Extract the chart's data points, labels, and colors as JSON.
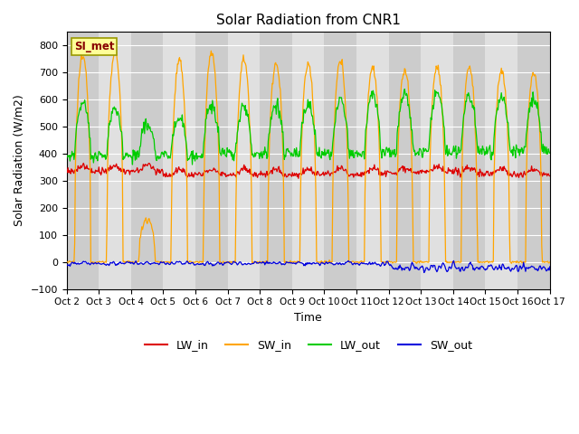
{
  "title": "Solar Radiation from CNR1",
  "xlabel": "Time",
  "ylabel": "Solar Radiation (W/m2)",
  "ylim": [
    -100,
    850
  ],
  "yticks": [
    -100,
    0,
    100,
    200,
    300,
    400,
    500,
    600,
    700,
    800
  ],
  "background_color": "#ffffff",
  "plot_bg_color": "#e0e0e0",
  "stripe_even_color": "#d0d0d0",
  "stripe_odd_color": "#e8e8e8",
  "grid_color": "#ffffff",
  "colors": {
    "LW_in": "#dd0000",
    "SW_in": "#ffa500",
    "LW_out": "#00cc00",
    "SW_out": "#0000dd"
  },
  "annotation_text": "SI_met",
  "annotation_box_color": "#ffff99",
  "annotation_text_color": "#880000",
  "num_days": 15,
  "start_day": 2
}
